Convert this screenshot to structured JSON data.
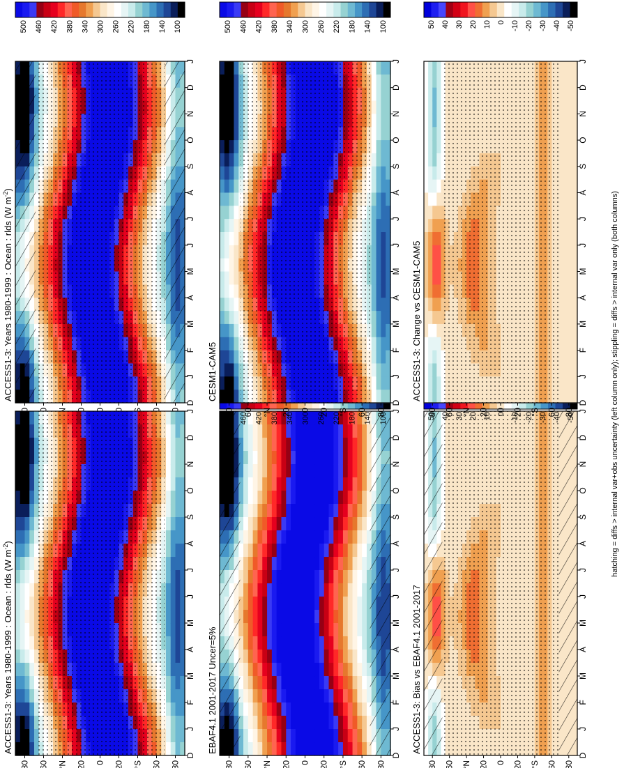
{
  "chart_data": [
    {
      "type": "heatmap",
      "title": "ACCESS1-3: Years 1980-1999 : Ocean : rlds (W m",
      "title_unit_sup": "-2",
      "title_close": ")",
      "x_ticks": [
        "D",
        "J",
        "F",
        "M",
        "A",
        "M",
        "J",
        "J",
        "A",
        "S",
        "O",
        "N",
        "D",
        "J"
      ],
      "y_ticks": [
        "80",
        "60",
        "°N",
        "20",
        "0",
        "20",
        "°S",
        "60",
        "80"
      ],
      "y_values": [
        80,
        60,
        40,
        20,
        0,
        -20,
        -40,
        -60,
        -80
      ],
      "colorbar_labels": [
        "500",
        "460",
        "420",
        "380",
        "340",
        "300",
        "260",
        "220",
        "180",
        "140",
        "100"
      ],
      "overlay": "stippling + hatching"
    },
    {
      "type": "heatmap",
      "title": "ACCESS1-3: Years 1980-1999 : Ocean : rlds (W m",
      "title_unit_sup": "-2",
      "title_close": ")",
      "x_ticks": [
        "D",
        "J",
        "F",
        "M",
        "A",
        "M",
        "J",
        "J",
        "A",
        "S",
        "O",
        "N",
        "D",
        "J"
      ],
      "y_ticks": [
        "80",
        "60",
        "°N",
        "20",
        "0",
        "20",
        "°S",
        "60",
        "80"
      ],
      "y_values": [
        80,
        60,
        40,
        20,
        0,
        -20,
        -40,
        -60,
        -80
      ],
      "colorbar_labels": [
        "500",
        "460",
        "420",
        "380",
        "340",
        "300",
        "260",
        "220",
        "180",
        "140",
        "100"
      ],
      "overlay": "stippling"
    },
    {
      "type": "heatmap",
      "title": "EBAF4.1 2001-2017 Uncer=5%",
      "x_ticks": [
        "D",
        "J",
        "F",
        "M",
        "A",
        "M",
        "J",
        "J",
        "A",
        "S",
        "O",
        "N",
        "D",
        "J"
      ],
      "y_ticks": [
        "80",
        "60",
        "°N",
        "20",
        "0",
        "20",
        "°S",
        "60",
        "80"
      ],
      "y_values": [
        80,
        60,
        40,
        20,
        0,
        -20,
        -40,
        -60,
        -80
      ],
      "colorbar_labels": [
        "500",
        "460",
        "420",
        "380",
        "340",
        "300",
        "260",
        "220",
        "180",
        "140",
        "100"
      ],
      "overlay": "hatching"
    },
    {
      "type": "heatmap",
      "title": "CESM1-CAM5",
      "x_ticks": [
        "D",
        "J",
        "F",
        "M",
        "A",
        "M",
        "J",
        "J",
        "A",
        "S",
        "O",
        "N",
        "D",
        "J"
      ],
      "y_ticks": [
        "80",
        "60",
        "°N",
        "20",
        "0",
        "20",
        "°S",
        "60",
        "80"
      ],
      "y_values": [
        80,
        60,
        40,
        20,
        0,
        -20,
        -40,
        -60,
        -80
      ],
      "colorbar_labels": [
        "500",
        "460",
        "420",
        "380",
        "340",
        "300",
        "260",
        "220",
        "180",
        "140",
        "100"
      ],
      "overlay": "stippling"
    },
    {
      "type": "heatmap",
      "title": "ACCESS1-3: Bias vs EBAF4.1 2001-2017",
      "x_ticks": [
        "D",
        "J",
        "F",
        "M",
        "A",
        "M",
        "J",
        "J",
        "A",
        "S",
        "O",
        "N",
        "D",
        "J"
      ],
      "y_ticks": [
        "80",
        "60",
        "°N",
        "20",
        "0",
        "20",
        "°S",
        "60",
        "80"
      ],
      "y_values": [
        80,
        60,
        40,
        20,
        0,
        -20,
        -40,
        -60,
        -80
      ],
      "colorbar_labels": [
        "50",
        "40",
        "30",
        "20",
        "10",
        "0",
        "-10",
        "-20",
        "-30",
        "-40",
        "-50"
      ],
      "overlay": "stippling + hatching"
    },
    {
      "type": "heatmap",
      "title": "ACCESS1-3: Change vs CESM1-CAM5",
      "x_ticks": [
        "D",
        "J",
        "F",
        "M",
        "A",
        "M",
        "J",
        "J",
        "A",
        "S",
        "O",
        "N",
        "D",
        "J"
      ],
      "y_ticks": [
        "80",
        "60",
        "°N",
        "20",
        "0",
        "20",
        "°S",
        "60",
        "80"
      ],
      "y_values": [
        80,
        60,
        40,
        20,
        0,
        -20,
        -40,
        -60,
        -80
      ],
      "colorbar_labels": [
        "50",
        "40",
        "30",
        "20",
        "10",
        "0",
        "-10",
        "-20",
        "-30",
        "-40",
        "-50"
      ],
      "overlay": "stippling"
    }
  ],
  "footer_note": "hatching = diffs > internal var+obs uncertainty (left column only); stippling = diffs > internal var only (both columns)",
  "colors": {
    "abs_scale": [
      "#0a0ae6",
      "#1a1af0",
      "#3a3af5",
      "#960014",
      "#c80014",
      "#e6001e",
      "#ff2828",
      "#ff6450",
      "#f05a28",
      "#e6782d",
      "#f0a050",
      "#f5c891",
      "#fae6c8",
      "#fff5e6",
      "#ffffff",
      "#e6f5f5",
      "#c8ebeb",
      "#96d2d2",
      "#6eb9d2",
      "#4696c8",
      "#2d6eb4",
      "#1e4696",
      "#0a1e5a",
      "#000000"
    ],
    "diff_scale": [
      "#0000dc",
      "#1e1ef0",
      "#4646ff",
      "#a00014",
      "#d20014",
      "#f0141e",
      "#ff5046",
      "#f06e32",
      "#f0a050",
      "#f5c891",
      "#fae6c8",
      "#ffffff",
      "#e6f5f5",
      "#c8ebeb",
      "#96d2d2",
      "#6eb9d2",
      "#4696c8",
      "#2d6eb4",
      "#1e4696",
      "#0a1e5a",
      "#000000"
    ]
  }
}
